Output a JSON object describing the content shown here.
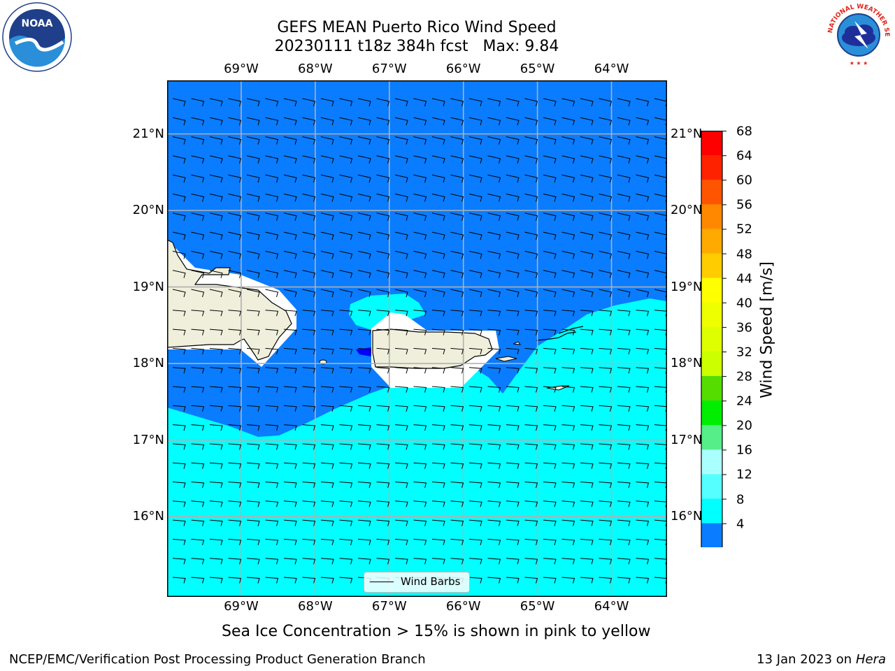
{
  "title": {
    "line1": "GEFS MEAN Puerto Rico Wind Speed",
    "line2": "20230111 t18z 384h fcst   Max: 9.84"
  },
  "map": {
    "lon_labels": [
      "69°W",
      "68°W",
      "67°W",
      "66°W",
      "65°W",
      "64°W"
    ],
    "lon_values": [
      -69,
      -68,
      -67,
      -66,
      -65,
      -64
    ],
    "lat_labels": [
      "21°N",
      "20°N",
      "19°N",
      "18°N",
      "17°N",
      "16°N"
    ],
    "lat_values": [
      21,
      20,
      19,
      18,
      17,
      16
    ],
    "legend_label": "Wind Barbs",
    "fill_colors": {
      "sea_band_4_8": "#0a7cff",
      "sea_band_8_12": "#00ffff",
      "land": "#efefdc",
      "below_4": "#0000ff"
    }
  },
  "colorbar": {
    "label": "Wind Speed [m/s]",
    "ticks": [
      "68",
      "64",
      "60",
      "56",
      "52",
      "48",
      "44",
      "40",
      "36",
      "32",
      "28",
      "24",
      "20",
      "16",
      "12",
      "8",
      "4"
    ],
    "colors_top_to_bottom": [
      "#ff0000",
      "#ff2200",
      "#ff5500",
      "#ff8800",
      "#ffaa00",
      "#ffcc00",
      "#ffff00",
      "#eeff00",
      "#ddff00",
      "#ccff00",
      "#55dd00",
      "#00ee00",
      "#55ee88",
      "#aaffff",
      "#55ffff",
      "#00ffff",
      "#0a7cff"
    ],
    "under_color": "#0000ff"
  },
  "footer": {
    "note": "Sea Ice Concentration > 15% is shown in pink to yellow",
    "left": "NCEP/EMC/Verification Post Processing Product Generation Branch",
    "right_prefix": "13 Jan 2023 on ",
    "right_machine": "Hera"
  },
  "logos": {
    "left": "noaa-logo",
    "right": "nws-logo",
    "right_text": "NATIONAL WEATHER SERVICE"
  }
}
